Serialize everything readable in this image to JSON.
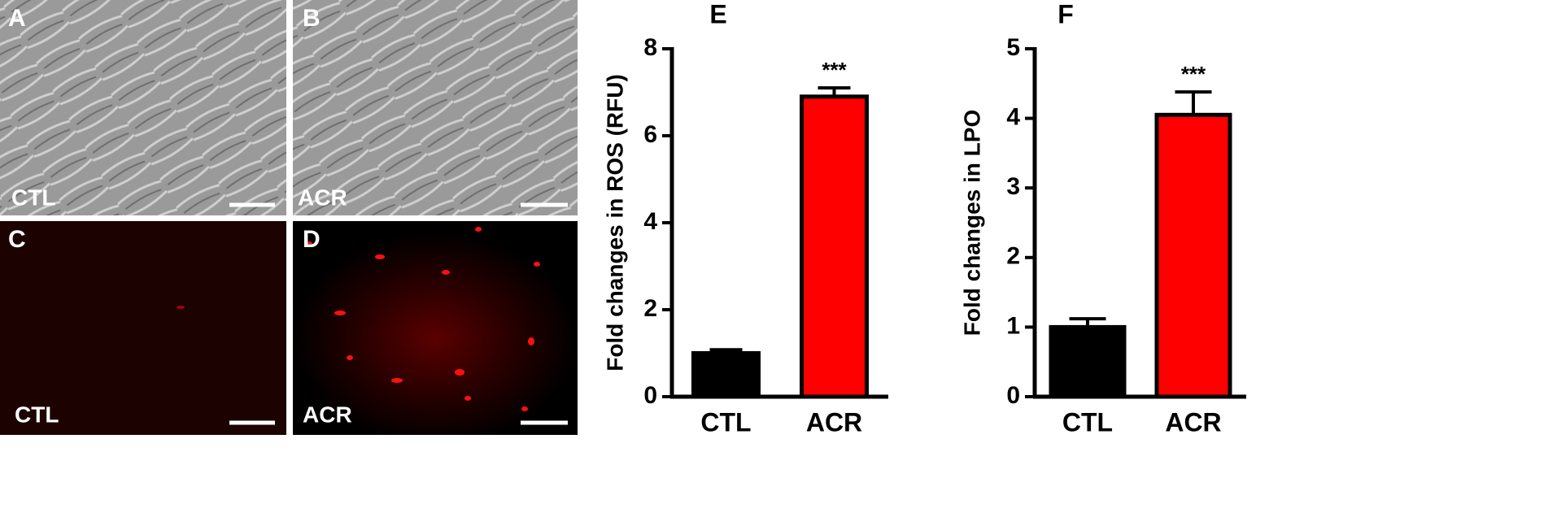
{
  "images": [
    {
      "label": "A",
      "caption": "CTL"
    },
    {
      "label": "B",
      "caption": "ACR"
    },
    {
      "label": "C",
      "caption": "CTL"
    },
    {
      "label": "D",
      "caption": "ACR"
    }
  ],
  "chart_data": [
    {
      "type": "bar",
      "panel_label": "E",
      "y_label": "Fold changes in ROS (RFU)",
      "categories": [
        "CTL",
        "ACR"
      ],
      "values": [
        1.0,
        6.9
      ],
      "errors": [
        0.08,
        0.2
      ],
      "colors": [
        "#000000",
        "#ff0000"
      ],
      "annotations": [
        null,
        "***"
      ],
      "ylim": [
        0,
        8
      ],
      "yticks": [
        0,
        2,
        4,
        6,
        8
      ]
    },
    {
      "type": "bar",
      "panel_label": "F",
      "y_label": "Fold changes in LPO",
      "categories": [
        "CTL",
        "ACR"
      ],
      "values": [
        1.0,
        4.05
      ],
      "errors": [
        0.12,
        0.33
      ],
      "colors": [
        "#000000",
        "#ff0000"
      ],
      "annotations": [
        null,
        "***"
      ],
      "ylim": [
        0,
        5
      ],
      "yticks": [
        0,
        1,
        2,
        3,
        4,
        5
      ]
    }
  ]
}
